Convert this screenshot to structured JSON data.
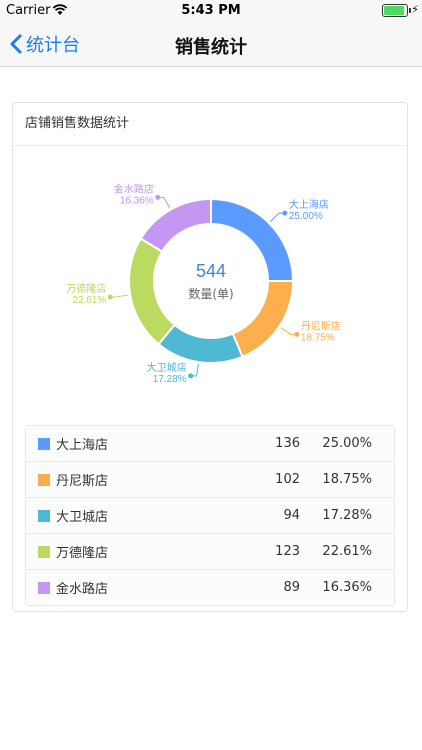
{
  "status_bar": {
    "carrier": "Carrier",
    "time": "5:43 PM",
    "battery_level": 1.0
  },
  "nav": {
    "back_label": "统计台",
    "title": "销售统计"
  },
  "card": {
    "title": "店铺销售数据统计"
  },
  "chart_data": {
    "type": "pie",
    "donut": true,
    "center_value": "544",
    "center_label": "数量(单)",
    "slices": [
      {
        "name": "大上海店",
        "value": 136,
        "percent": "25.00%",
        "color": "#5b9bff"
      },
      {
        "name": "丹尼斯店",
        "value": 102,
        "percent": "18.75%",
        "color": "#ffae4d"
      },
      {
        "name": "大卫城店",
        "value": 94,
        "percent": "17.28%",
        "color": "#4fb9d3"
      },
      {
        "name": "万德隆店",
        "value": 123,
        "percent": "22.61%",
        "color": "#bcd960"
      },
      {
        "name": "金水路店",
        "value": 89,
        "percent": "16.36%",
        "color": "#c497f2"
      }
    ]
  }
}
